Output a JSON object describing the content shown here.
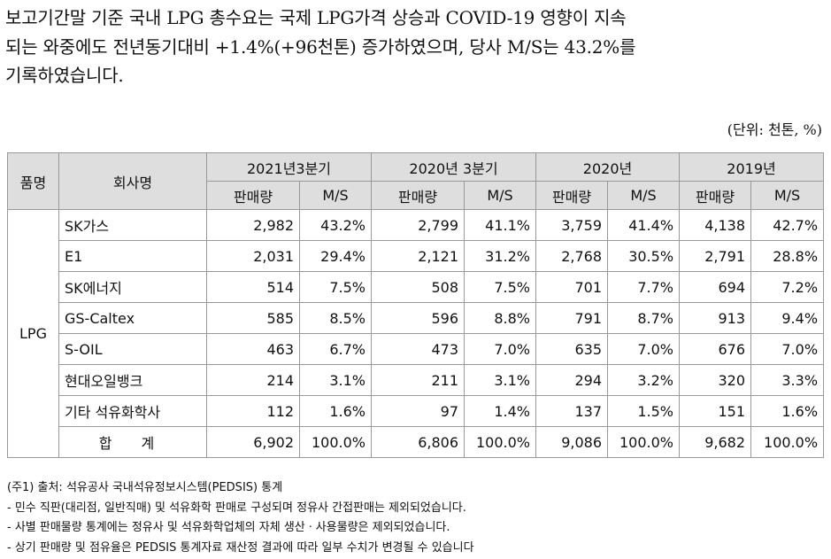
{
  "intro": {
    "lines": [
      "보고기간말 기준 국내 LPG 총수요는 국제 LPG가격 상승과 COVID-19 영향이 지속",
      "되는 와중에도 전년동기대비 +1.4%(+96천톤) 증가하였으며, 당사 M/S는 43.2%를",
      "기록하였습니다."
    ]
  },
  "unit_note": "(단위: 천톤, %)",
  "table": {
    "headers": {
      "product": "품명",
      "company": "회사명",
      "periods": [
        "2021년3분기",
        "2020년 3분기",
        "2020년",
        "2019년"
      ],
      "sub_sales": "판매량",
      "sub_share": "M/S"
    },
    "product_group": "LPG",
    "rows": [
      {
        "company": "SK가스",
        "values": [
          "2,982",
          "43.2%",
          "2,799",
          "41.1%",
          "3,759",
          "41.4%",
          "4,138",
          "42.7%"
        ]
      },
      {
        "company": "E1",
        "values": [
          "2,031",
          "29.4%",
          "2,121",
          "31.2%",
          "2,768",
          "30.5%",
          "2,791",
          "28.8%"
        ]
      },
      {
        "company": "SK에너지",
        "values": [
          "514",
          "7.5%",
          "508",
          "7.5%",
          "701",
          "7.7%",
          "694",
          "7.2%"
        ]
      },
      {
        "company": "GS-Caltex",
        "values": [
          "585",
          "8.5%",
          "596",
          "8.8%",
          "791",
          "8.7%",
          "913",
          "9.4%"
        ]
      },
      {
        "company": "S-OIL",
        "values": [
          "463",
          "6.7%",
          "473",
          "7.0%",
          "635",
          "7.0%",
          "676",
          "7.0%"
        ]
      },
      {
        "company": "현대오일뱅크",
        "values": [
          "214",
          "3.1%",
          "211",
          "3.1%",
          "294",
          "3.2%",
          "320",
          "3.3%"
        ]
      },
      {
        "company": "기타 석유화학사",
        "values": [
          "112",
          "1.6%",
          "97",
          "1.4%",
          "137",
          "1.5%",
          "151",
          "1.6%"
        ]
      }
    ],
    "total": {
      "label": "합 계",
      "values": [
        "6,902",
        "100.0%",
        "6,806",
        "100.0%",
        "9,086",
        "100.0%",
        "9,682",
        "100.0%"
      ]
    }
  },
  "notes": [
    "(주1) 출처: 석유공사 국내석유정보시스템(PEDSIS) 통계",
    "- 민수 직판(대리점, 일반직매) 및 석유화학 판매로 구성되며 정유사 간접판매는 제외되었습니다.",
    "- 사별 판매물량 통계에는 정유사 및 석유화학업체의 자체 생산ㆍ사용물량은 제외되었습니다.",
    "- 상기 판매량 및 점유율은 PEDSIS 통계자료 재산정 결과에 따라 일부 수치가 변경될 수 있습니다"
  ]
}
